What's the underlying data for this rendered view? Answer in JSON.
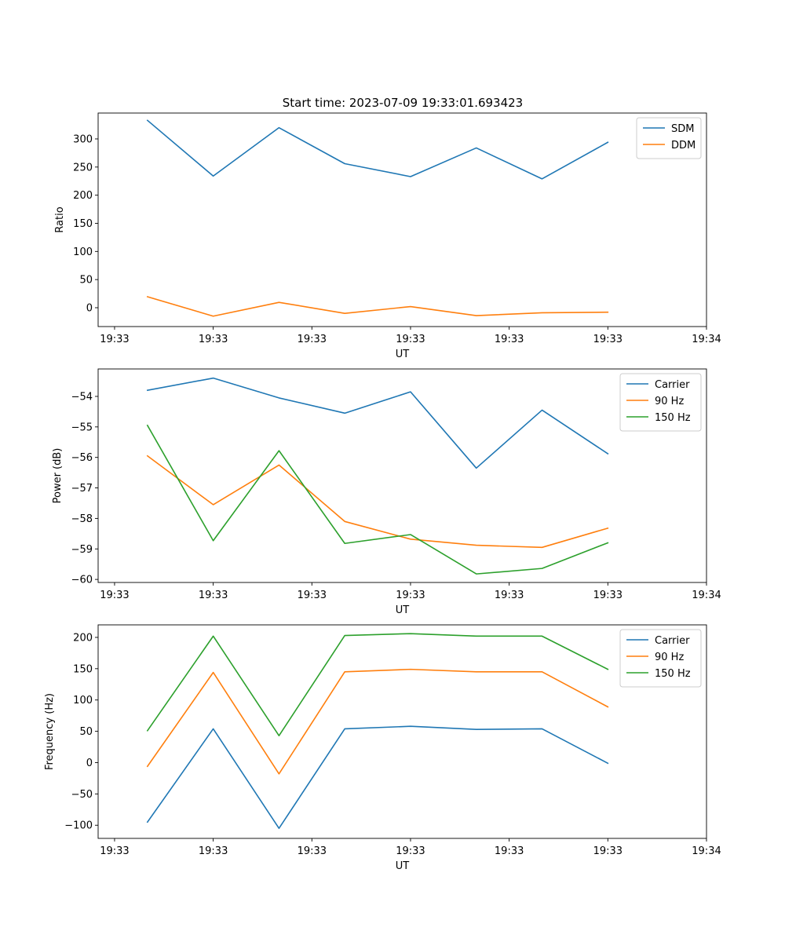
{
  "figure_title": "Start time: 2023-07-09 19:33:01.693423",
  "colors": {
    "series_blue": "#1f77b4",
    "series_orange": "#ff7f0e",
    "series_green": "#2ca02c",
    "axis": "#000000",
    "legend_border": "#cccccc"
  },
  "chart_data": [
    {
      "type": "line",
      "xlabel": "UT",
      "ylabel": "Ratio",
      "x_tick_labels": [
        "19:33",
        "19:33",
        "19:33",
        "19:33",
        "19:33",
        "19:33",
        "19:34"
      ],
      "xlim": [
        0,
        9.25
      ],
      "x": [
        0.75,
        1.75,
        2.75,
        3.75,
        4.75,
        5.75,
        6.75,
        7.75
      ],
      "ylim": [
        -33.5,
        346
      ],
      "y_ticks": [
        0,
        50,
        100,
        150,
        200,
        250,
        300
      ],
      "legend_position": "upper right",
      "series": [
        {
          "name": "SDM",
          "color_key": "series_blue",
          "values": [
            333,
            234,
            320,
            256,
            233,
            284,
            229,
            294
          ]
        },
        {
          "name": "DDM",
          "color_key": "series_orange",
          "values": [
            19.5,
            -15,
            9.5,
            -10,
            2,
            -14,
            -9,
            -8
          ]
        }
      ]
    },
    {
      "type": "line",
      "xlabel": "UT",
      "ylabel": "Power (dB)",
      "x_tick_labels": [
        "19:33",
        "19:33",
        "19:33",
        "19:33",
        "19:33",
        "19:33",
        "19:34"
      ],
      "xlim": [
        0,
        9.25
      ],
      "x": [
        0.75,
        1.75,
        2.75,
        3.75,
        4.75,
        5.75,
        6.75,
        7.75
      ],
      "ylim": [
        -60.1,
        -53.1
      ],
      "y_ticks": [
        -60,
        -59,
        -58,
        -57,
        -56,
        -55,
        -54
      ],
      "legend_position": "upper right",
      "series": [
        {
          "name": "Carrier",
          "color_key": "series_blue",
          "values": [
            -53.8,
            -53.4,
            -54.05,
            -54.55,
            -53.85,
            -56.35,
            -54.45,
            -55.88
          ]
        },
        {
          "name": "90 Hz",
          "color_key": "series_orange",
          "values": [
            -55.95,
            -57.55,
            -56.25,
            -58.1,
            -58.68,
            -58.88,
            -58.95,
            -58.32
          ]
        },
        {
          "name": "150 Hz",
          "color_key": "series_green",
          "values": [
            -54.95,
            -58.73,
            -55.78,
            -58.82,
            -58.53,
            -59.82,
            -59.64,
            -58.8
          ]
        }
      ]
    },
    {
      "type": "line",
      "xlabel": "UT",
      "ylabel": "Frequency (Hz)",
      "x_tick_labels": [
        "19:33",
        "19:33",
        "19:33",
        "19:33",
        "19:33",
        "19:33",
        "19:34"
      ],
      "xlim": [
        0,
        9.25
      ],
      "x": [
        0.75,
        1.75,
        2.75,
        3.75,
        4.75,
        5.75,
        6.75,
        7.75
      ],
      "ylim": [
        -121,
        220
      ],
      "y_ticks": [
        -100,
        -50,
        0,
        50,
        100,
        150,
        200
      ],
      "legend_position": "upper right",
      "series": [
        {
          "name": "Carrier",
          "color_key": "series_blue",
          "values": [
            -95,
            54,
            -105,
            54,
            58,
            53,
            54,
            -1
          ]
        },
        {
          "name": "90 Hz",
          "color_key": "series_orange",
          "values": [
            -6,
            144,
            -18,
            145,
            149,
            145,
            145,
            89
          ]
        },
        {
          "name": "150 Hz",
          "color_key": "series_green",
          "values": [
            51,
            202,
            43,
            203,
            206,
            202,
            202,
            149
          ]
        }
      ]
    }
  ]
}
